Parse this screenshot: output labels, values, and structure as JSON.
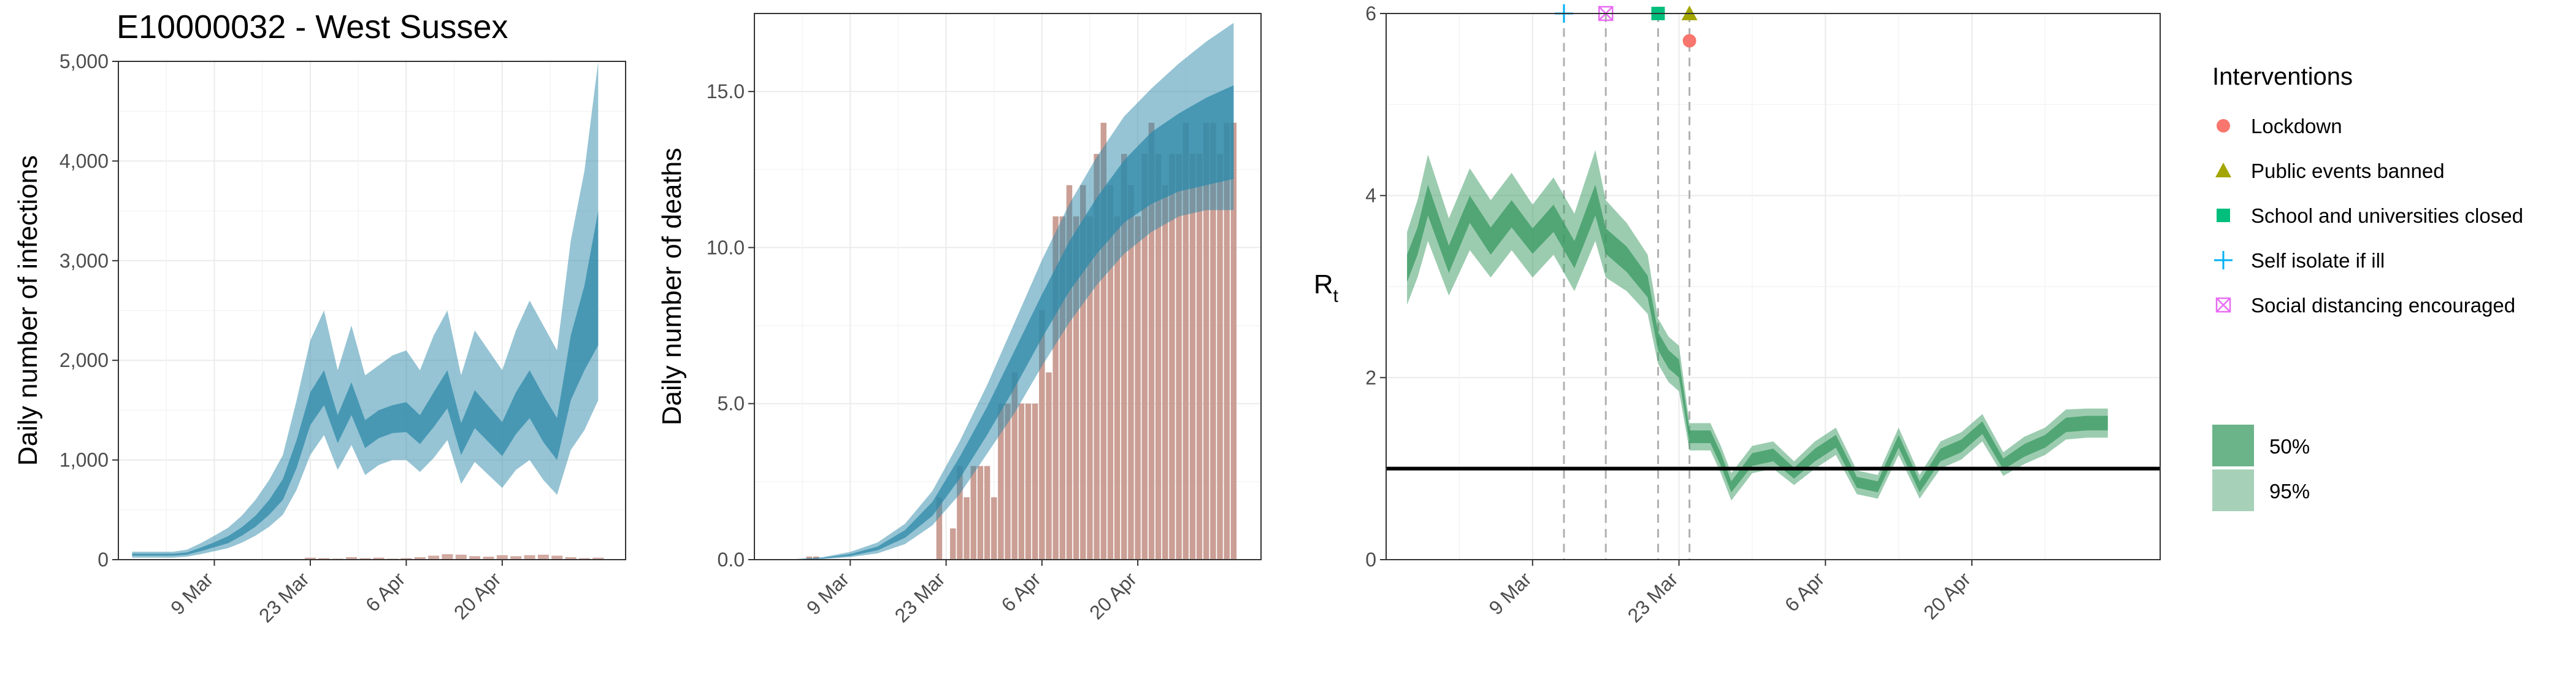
{
  "figure_title": "E10000032 - West Sussex",
  "colors": {
    "infections_band": "#2e8aa9",
    "deaths_band": "#2e8aa9",
    "observed_bar": "#c5958a",
    "rt_band": "#3a9a61",
    "threshold_line": "#000000",
    "lockdown": "#f8766d",
    "public_events_banned": "#a3a500",
    "school_closed": "#00bf7d",
    "self_isolate": "#00b0f6",
    "social_distancing": "#e76bf3"
  },
  "legend": {
    "interventions_title": "Interventions",
    "interventions": [
      {
        "label": "Lockdown",
        "icon": "circle",
        "color": "#f8766d"
      },
      {
        "label": "Public events banned",
        "icon": "triangle",
        "color": "#a3a500"
      },
      {
        "label": "School and universities closed",
        "icon": "square",
        "color": "#00bf7d"
      },
      {
        "label": "Self isolate if ill",
        "icon": "plus",
        "color": "#00b0f6"
      },
      {
        "label": "Social distancing encouraged",
        "icon": "boxed-cross",
        "color": "#e76bf3"
      }
    ],
    "ci_entries": [
      {
        "label": "50%",
        "color": "#3a9a61",
        "opacity": 0.75
      },
      {
        "label": "95%",
        "color": "#3a9a61",
        "opacity": 0.45
      }
    ]
  },
  "chart_data": [
    {
      "type": "area",
      "ylabel": "Daily number of infections",
      "ylim": [
        0,
        5000
      ],
      "yticks": [
        0,
        1000,
        2000,
        3000,
        4000,
        5000
      ],
      "ytick_labels": [
        "0",
        "1,000",
        "2,000",
        "3,000",
        "4,000",
        "5,000"
      ],
      "xlim": [
        "2020-02-24",
        "2020-05-08"
      ],
      "xticks": [
        "2020-03-09",
        "2020-03-23",
        "2020-04-06",
        "2020-04-20"
      ],
      "xtick_labels": [
        "9 Mar",
        "23 Mar",
        "6 Apr",
        "20 Apr"
      ],
      "grid": true,
      "x": [
        "2020-02-26",
        "2020-02-28",
        "2020-03-01",
        "2020-03-03",
        "2020-03-05",
        "2020-03-07",
        "2020-03-09",
        "2020-03-11",
        "2020-03-13",
        "2020-03-15",
        "2020-03-17",
        "2020-03-19",
        "2020-03-21",
        "2020-03-23",
        "2020-03-25",
        "2020-03-27",
        "2020-03-29",
        "2020-03-31",
        "2020-04-02",
        "2020-04-04",
        "2020-04-06",
        "2020-04-08",
        "2020-04-10",
        "2020-04-12",
        "2020-04-14",
        "2020-04-16",
        "2020-04-18",
        "2020-04-20",
        "2020-04-22",
        "2020-04-24",
        "2020-04-26",
        "2020-04-28",
        "2020-04-30",
        "2020-05-02",
        "2020-05-04"
      ],
      "median": [
        50,
        50,
        50,
        50,
        60,
        100,
        150,
        200,
        280,
        380,
        520,
        700,
        1050,
        1500,
        1700,
        1300,
        1600,
        1250,
        1350,
        1400,
        1420,
        1300,
        1500,
        1700,
        1200,
        1500,
        1350,
        1200,
        1450,
        1650,
        1400,
        1200,
        1900,
        2300,
        2600
      ],
      "ci50_lower": [
        40,
        40,
        40,
        40,
        50,
        85,
        125,
        165,
        240,
        330,
        450,
        600,
        920,
        1350,
        1550,
        1170,
        1450,
        1120,
        1220,
        1270,
        1280,
        1160,
        1330,
        1520,
        1050,
        1320,
        1180,
        1040,
        1260,
        1420,
        1180,
        1000,
        1600,
        1900,
        2150
      ],
      "ci50_upper": [
        60,
        60,
        60,
        60,
        72,
        120,
        175,
        235,
        325,
        440,
        600,
        810,
        1200,
        1680,
        1900,
        1450,
        1780,
        1400,
        1500,
        1550,
        1580,
        1450,
        1680,
        1900,
        1370,
        1700,
        1540,
        1380,
        1680,
        1900,
        1650,
        1420,
        2250,
        2750,
        3500
      ],
      "ci95_lower": [
        20,
        20,
        20,
        20,
        30,
        55,
        85,
        115,
        170,
        240,
        330,
        450,
        700,
        1050,
        1250,
        900,
        1150,
        850,
        950,
        1000,
        1000,
        880,
        1020,
        1200,
        760,
        980,
        850,
        720,
        900,
        1000,
        800,
        650,
        1100,
        1300,
        1600
      ],
      "ci95_upper": [
        80,
        80,
        80,
        80,
        100,
        165,
        240,
        320,
        440,
        600,
        800,
        1050,
        1600,
        2200,
        2500,
        1900,
        2350,
        1850,
        1950,
        2050,
        2100,
        1900,
        2250,
        2500,
        1850,
        2300,
        2100,
        1900,
        2300,
        2600,
        2350,
        2100,
        3200,
        3900,
        5000
      ],
      "observed_x": [
        "2020-03-23",
        "2020-03-25",
        "2020-03-27",
        "2020-03-29",
        "2020-03-31",
        "2020-04-02",
        "2020-04-04",
        "2020-04-06",
        "2020-04-08",
        "2020-04-10",
        "2020-04-12",
        "2020-04-14",
        "2020-04-16",
        "2020-04-18",
        "2020-04-20",
        "2020-04-22",
        "2020-04-24",
        "2020-04-26",
        "2020-04-28",
        "2020-04-30",
        "2020-05-02",
        "2020-05-04"
      ],
      "observed_values": [
        20,
        15,
        10,
        25,
        15,
        20,
        10,
        15,
        25,
        40,
        55,
        50,
        35,
        30,
        45,
        35,
        45,
        50,
        40,
        25,
        15,
        20
      ]
    },
    {
      "type": "bar",
      "ylabel": "Daily number of deaths",
      "ylim": [
        0,
        17.5
      ],
      "yticks": [
        0,
        5,
        10,
        15
      ],
      "ytick_labels": [
        "0.0",
        "5.0",
        "10.0",
        "15.0"
      ],
      "xlim": [
        "2020-02-24",
        "2020-05-08"
      ],
      "xticks": [
        "2020-03-09",
        "2020-03-23",
        "2020-04-06",
        "2020-04-20"
      ],
      "xtick_labels": [
        "9 Mar",
        "23 Mar",
        "6 Apr",
        "20 Apr"
      ],
      "grid": true,
      "bars_x": [
        "2020-03-03",
        "2020-03-04",
        "2020-03-22",
        "2020-03-24",
        "2020-03-25",
        "2020-03-26",
        "2020-03-27",
        "2020-03-28",
        "2020-03-29",
        "2020-03-30",
        "2020-03-31",
        "2020-04-01",
        "2020-04-02",
        "2020-04-03",
        "2020-04-04",
        "2020-04-05",
        "2020-04-06",
        "2020-04-07",
        "2020-04-08",
        "2020-04-09",
        "2020-04-10",
        "2020-04-11",
        "2020-04-12",
        "2020-04-13",
        "2020-04-14",
        "2020-04-15",
        "2020-04-16",
        "2020-04-17",
        "2020-04-18",
        "2020-04-19",
        "2020-04-20",
        "2020-04-21",
        "2020-04-22",
        "2020-04-23",
        "2020-04-24",
        "2020-04-25",
        "2020-04-26",
        "2020-04-27",
        "2020-04-28",
        "2020-04-29",
        "2020-04-30",
        "2020-05-01",
        "2020-05-02",
        "2020-05-03",
        "2020-05-04"
      ],
      "bars_values": [
        0.1,
        0.1,
        2,
        1,
        3,
        2,
        3,
        3,
        3,
        2,
        5,
        5,
        6,
        5,
        5,
        5,
        8,
        6,
        11,
        11,
        12,
        11,
        12,
        11,
        13,
        14,
        12,
        11,
        13,
        12,
        11,
        13,
        14,
        13,
        12,
        13,
        13,
        14,
        13,
        13,
        14,
        14,
        13,
        14,
        14
      ],
      "line_x": [
        "2020-03-01",
        "2020-03-05",
        "2020-03-09",
        "2020-03-13",
        "2020-03-17",
        "2020-03-21",
        "2020-03-25",
        "2020-03-29",
        "2020-04-02",
        "2020-04-06",
        "2020-04-10",
        "2020-04-14",
        "2020-04-18",
        "2020-04-22",
        "2020-04-26",
        "2020-04-30",
        "2020-05-04"
      ],
      "median": [
        0.01,
        0.05,
        0.15,
        0.35,
        0.8,
        1.6,
        2.9,
        4.4,
        6.0,
        7.7,
        9.3,
        10.6,
        11.7,
        12.5,
        13.0,
        13.4,
        13.9
      ],
      "ci50_lower": [
        0.01,
        0.04,
        0.12,
        0.3,
        0.7,
        1.4,
        2.6,
        4.0,
        5.5,
        7.1,
        8.6,
        9.8,
        10.8,
        11.4,
        11.8,
        12.0,
        12.2
      ],
      "ci50_upper": [
        0.01,
        0.06,
        0.18,
        0.42,
        0.95,
        1.85,
        3.3,
        4.9,
        6.7,
        8.5,
        10.2,
        11.6,
        12.8,
        13.7,
        14.3,
        14.8,
        15.2
      ],
      "ci95_lower": [
        0.0,
        0.02,
        0.08,
        0.2,
        0.5,
        1.1,
        2.1,
        3.4,
        4.7,
        6.2,
        7.6,
        8.8,
        9.8,
        10.5,
        11.0,
        11.2,
        11.2
      ],
      "ci95_upper": [
        0.02,
        0.08,
        0.25,
        0.55,
        1.15,
        2.2,
        3.8,
        5.6,
        7.6,
        9.6,
        11.4,
        12.9,
        14.2,
        15.1,
        15.9,
        16.6,
        17.2
      ]
    },
    {
      "type": "line",
      "ylabel": "Rt",
      "ylim": [
        0,
        6
      ],
      "yticks": [
        0,
        2,
        4,
        6
      ],
      "ytick_labels": [
        "0",
        "2",
        "4",
        "6"
      ],
      "xlim": [
        "2020-02-24",
        "2020-05-08"
      ],
      "xticks": [
        "2020-03-09",
        "2020-03-23",
        "2020-04-06",
        "2020-04-20"
      ],
      "xtick_labels": [
        "9 Mar",
        "23 Mar",
        "6 Apr",
        "20 Apr"
      ],
      "grid": true,
      "threshold": 1,
      "x": [
        "2020-02-26",
        "2020-02-27",
        "2020-02-28",
        "2020-03-01",
        "2020-03-03",
        "2020-03-05",
        "2020-03-07",
        "2020-03-09",
        "2020-03-11",
        "2020-03-13",
        "2020-03-15",
        "2020-03-16",
        "2020-03-18",
        "2020-03-20",
        "2020-03-21",
        "2020-03-22",
        "2020-03-23",
        "2020-03-24",
        "2020-03-26",
        "2020-03-27",
        "2020-03-28",
        "2020-03-30",
        "2020-04-01",
        "2020-04-03",
        "2020-04-05",
        "2020-04-07",
        "2020-04-09",
        "2020-04-11",
        "2020-04-13",
        "2020-04-15",
        "2020-04-17",
        "2020-04-19",
        "2020-04-21",
        "2020-04-23",
        "2020-04-25",
        "2020-04-27",
        "2020-04-29",
        "2020-05-01",
        "2020-05-03"
      ],
      "median": [
        3.2,
        3.5,
        3.95,
        3.3,
        3.85,
        3.5,
        3.8,
        3.5,
        3.75,
        3.35,
        3.95,
        3.5,
        3.3,
        3.0,
        2.4,
        2.2,
        2.1,
        1.35,
        1.35,
        1.1,
        0.8,
        1.1,
        1.15,
        0.95,
        1.15,
        1.3,
        0.85,
        0.8,
        1.3,
        0.8,
        1.15,
        1.25,
        1.45,
        1.05,
        1.2,
        1.3,
        1.48,
        1.5,
        1.5
      ],
      "ci50_lower": [
        3.05,
        3.35,
        3.78,
        3.15,
        3.7,
        3.35,
        3.65,
        3.36,
        3.6,
        3.2,
        3.78,
        3.36,
        3.16,
        2.88,
        2.3,
        2.1,
        2.0,
        1.28,
        1.28,
        1.03,
        0.74,
        1.03,
        1.08,
        0.89,
        1.08,
        1.23,
        0.79,
        0.74,
        1.23,
        0.74,
        1.08,
        1.18,
        1.38,
        0.99,
        1.13,
        1.23,
        1.4,
        1.42,
        1.42
      ],
      "ci50_upper": [
        3.35,
        3.65,
        4.12,
        3.45,
        4.0,
        3.65,
        3.95,
        3.64,
        3.9,
        3.5,
        4.12,
        3.64,
        3.44,
        3.12,
        2.5,
        2.3,
        2.2,
        1.42,
        1.42,
        1.17,
        0.86,
        1.17,
        1.22,
        1.01,
        1.22,
        1.37,
        0.91,
        0.86,
        1.37,
        0.86,
        1.22,
        1.32,
        1.52,
        1.11,
        1.27,
        1.37,
        1.56,
        1.58,
        1.58
      ],
      "ci95_lower": [
        2.8,
        3.1,
        3.5,
        2.9,
        3.4,
        3.1,
        3.4,
        3.1,
        3.35,
        2.95,
        3.5,
        3.1,
        2.95,
        2.7,
        2.15,
        1.95,
        1.85,
        1.2,
        1.2,
        0.95,
        0.65,
        0.95,
        1.0,
        0.82,
        1.0,
        1.15,
        0.72,
        0.67,
        1.15,
        0.67,
        1.0,
        1.1,
        1.3,
        0.92,
        1.05,
        1.15,
        1.32,
        1.34,
        1.34
      ],
      "ci95_upper": [
        3.6,
        3.95,
        4.45,
        3.75,
        4.3,
        3.95,
        4.25,
        3.9,
        4.2,
        3.8,
        4.5,
        3.95,
        3.7,
        3.35,
        2.65,
        2.45,
        2.35,
        1.5,
        1.5,
        1.25,
        0.95,
        1.25,
        1.3,
        1.08,
        1.3,
        1.45,
        0.98,
        0.93,
        1.45,
        0.93,
        1.3,
        1.4,
        1.6,
        1.18,
        1.35,
        1.45,
        1.65,
        1.66,
        1.66
      ],
      "interventions": [
        {
          "name": "Self isolate if ill",
          "date": "2020-03-12",
          "marker": "plus",
          "y": 6.0
        },
        {
          "name": "Social distancing encouraged",
          "date": "2020-03-16",
          "marker": "boxed-cross",
          "y": 6.0
        },
        {
          "name": "School and universities closed",
          "date": "2020-03-21",
          "marker": "square",
          "y": 6.0
        },
        {
          "name": "Public events banned",
          "date": "2020-03-24",
          "marker": "triangle",
          "y": 6.0
        },
        {
          "name": "Lockdown",
          "date": "2020-03-24",
          "marker": "circle",
          "y": 5.7
        }
      ]
    }
  ]
}
